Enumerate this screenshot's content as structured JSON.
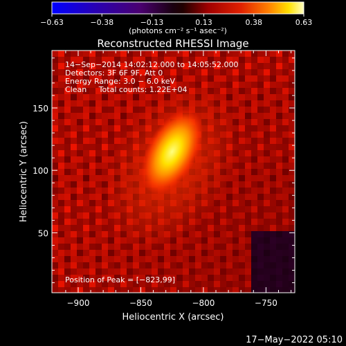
{
  "chart_data": {
    "type": "heatmap",
    "title": "Reconstructed RHESSI Image",
    "xlabel": "Heliocentric X (arcsec)",
    "ylabel": "Heliocentric Y (arcsec)",
    "xlim": [
      -921,
      -727
    ],
    "ylim": [
      2,
      196
    ],
    "x_ticks": [
      -900,
      -850,
      -800,
      -750
    ],
    "y_ticks": [
      50,
      100,
      150
    ],
    "x_tick_labels": [
      "−900",
      "−850",
      "−800",
      "−750"
    ],
    "y_tick_labels": [
      "50",
      "100",
      "150"
    ],
    "colorbar": {
      "min": -0.63,
      "max": 0.63,
      "ticks": [
        -0.63,
        -0.38,
        -0.13,
        0.13,
        0.38,
        0.63
      ],
      "tick_labels": [
        "−0.63",
        "−0.38",
        "−0.13",
        "0.13",
        "0.38",
        "0.63"
      ],
      "units_label": "(photons cm⁻² s⁻¹ asec⁻²)"
    },
    "source": {
      "peak_x": -823,
      "peak_y": 99,
      "extent_x": [
        -845,
        -805
      ],
      "extent_y": [
        78,
        152
      ],
      "peak_value": 0.63
    },
    "annotations": [
      "14−Sep−2014 14:02:12.000 to 14:05:52.000",
      "Detectors: 3F 6F 9F, Att 0",
      "Energy Range: 3.0 − 6.0 keV",
      "Clean     Total counts: 1.22E+04"
    ],
    "peak_label": "Position of Peak = [−823,99]",
    "timestamp": "17−May−2022 05:10"
  }
}
